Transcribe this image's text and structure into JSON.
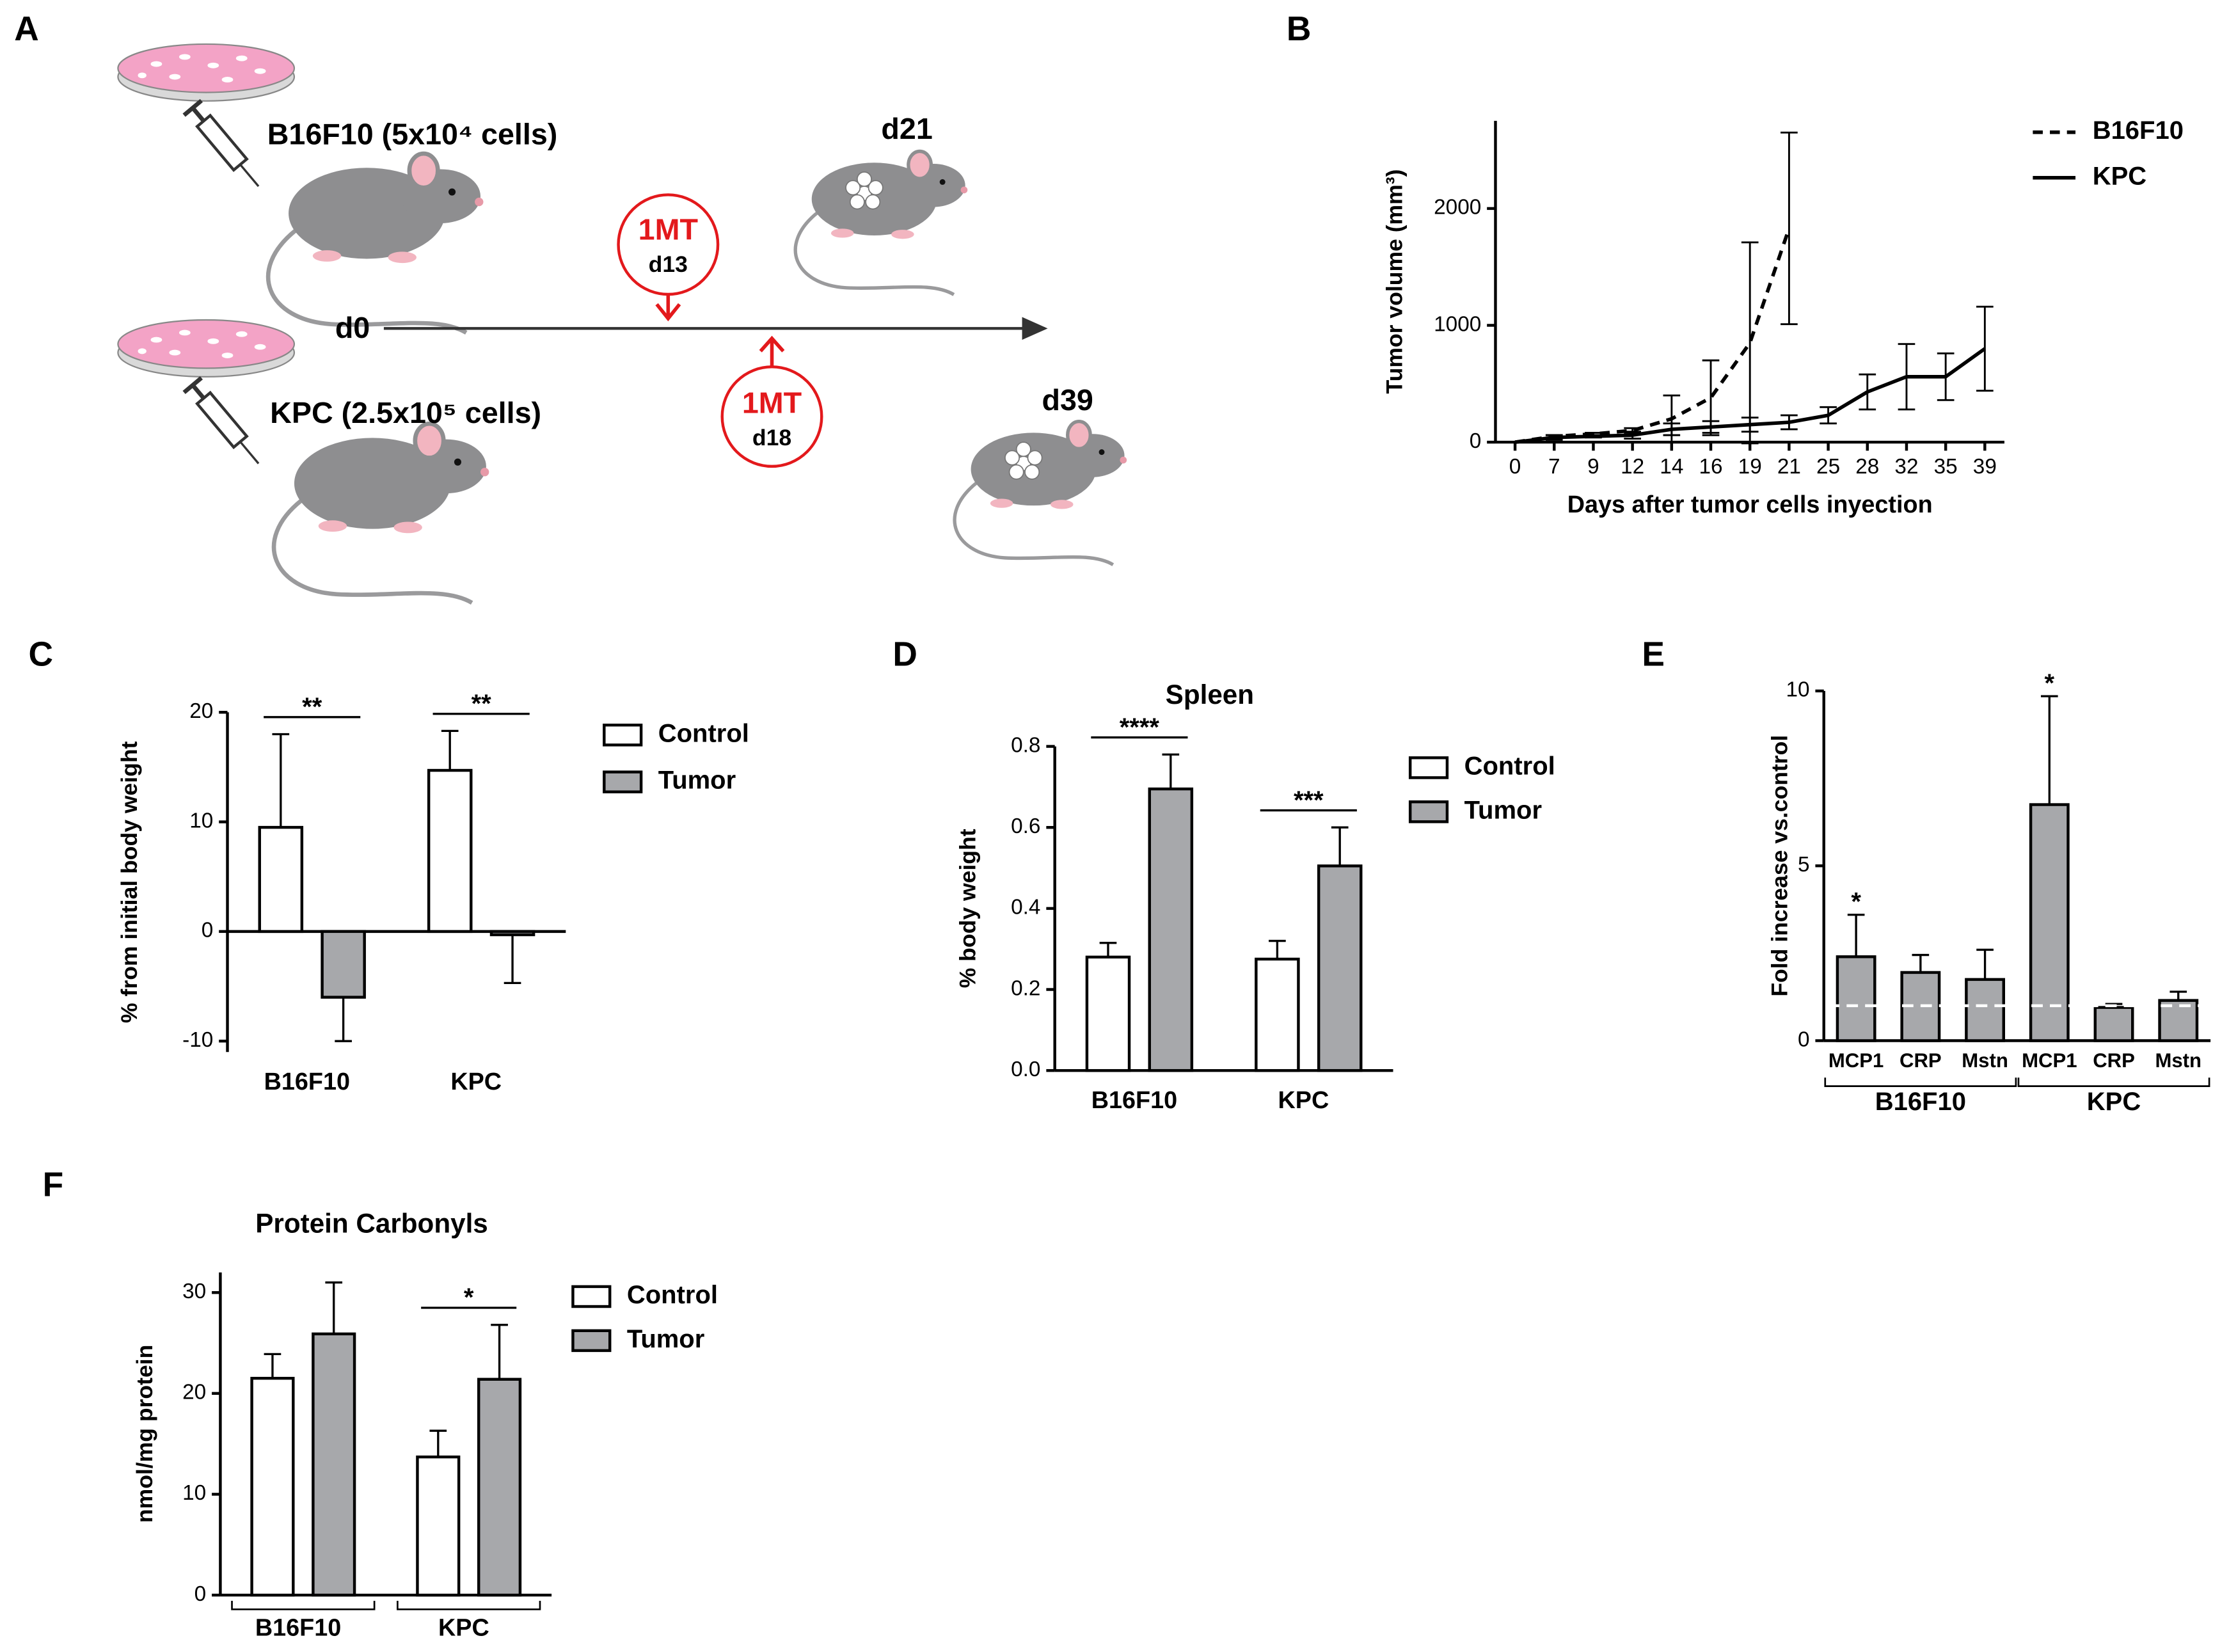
{
  "panel_labels": [
    "A",
    "B",
    "C",
    "D",
    "E",
    "F"
  ],
  "diagram": {
    "cell_lines": [
      "B16F10 (5x10⁴ cells)",
      "KPC (2.5x10⁵ cells)"
    ],
    "start": "d0",
    "endpoints": [
      "d21",
      "d39"
    ],
    "treatments": [
      {
        "name": "1MT",
        "day": "d13"
      },
      {
        "name": "1MT",
        "day": "d18"
      }
    ]
  },
  "chart_data": [
    {
      "type": "line",
      "ylabel": "Tumor volume (mm³)",
      "xlabel": "Days after tumor cells inyection",
      "categories": [
        0,
        7,
        9,
        12,
        14,
        16,
        19,
        21,
        25,
        28,
        32,
        35,
        39
      ],
      "ylim": [
        0,
        2750
      ],
      "yticks": [
        0,
        1000,
        2000
      ],
      "series": [
        {
          "name": "B16F10",
          "color": "#000000",
          "line_style": "dashed",
          "values": [
            0,
            50,
            70,
            100,
            200,
            380,
            850,
            1830,
            null,
            null,
            null,
            null,
            null
          ],
          "errors": [
            0,
            10,
            10,
            20,
            200,
            320,
            860,
            820,
            null,
            null,
            null,
            null,
            null
          ]
        },
        {
          "name": "KPC",
          "color": "#000000",
          "line_style": "solid",
          "values": [
            0,
            40,
            50,
            60,
            110,
            130,
            150,
            170,
            230,
            430,
            560,
            560,
            800
          ],
          "errors": [
            0,
            20,
            10,
            30,
            50,
            50,
            60,
            60,
            70,
            150,
            280,
            200,
            360
          ]
        }
      ]
    },
    {
      "type": "bar",
      "ylabel": "% from initial body weight",
      "categories": [
        "B16F10",
        "KPC"
      ],
      "ylim": [
        -11,
        20
      ],
      "yticks": [
        -10,
        0,
        10,
        20
      ],
      "series": [
        {
          "name": "Control",
          "color": "#ffffff",
          "values": [
            9.5,
            14.7
          ],
          "errors": [
            8.5,
            3.6
          ]
        },
        {
          "name": "Tumor",
          "color": "#a7a8ab",
          "values": [
            -6,
            -0.3
          ],
          "errors": [
            4,
            4.4
          ]
        }
      ],
      "significance": [
        "**",
        "**"
      ]
    },
    {
      "type": "bar",
      "title": "Spleen",
      "ylabel": "% body weight",
      "categories": [
        "B16F10",
        "KPC"
      ],
      "ylim": [
        0,
        0.8
      ],
      "yticks": [
        {
          "value": 0,
          "label": "0.0"
        },
        0.2,
        0.4,
        0.6,
        0.8
      ],
      "series": [
        {
          "name": "Control",
          "color": "#ffffff",
          "values": [
            0.28,
            0.275
          ],
          "errors": [
            0.035,
            0.045
          ]
        },
        {
          "name": "Tumor",
          "color": "#a7a8ab",
          "values": [
            0.695,
            0.505
          ],
          "errors": [
            0.085,
            0.095
          ]
        }
      ],
      "significance": [
        "****",
        "***"
      ]
    },
    {
      "type": "bar",
      "ylabel": "Fold increase vs.control",
      "groups": [
        {
          "name": "B16F10",
          "categories": [
            "MCP1",
            "CRP",
            "Mstn"
          ]
        },
        {
          "name": "KPC",
          "categories": [
            "MCP1",
            "CRP",
            "Mstn"
          ]
        }
      ],
      "ylim": [
        0,
        10
      ],
      "yticks": [
        0,
        5,
        10
      ],
      "reference_line": 1,
      "series": [
        {
          "color": "#a7a8ab",
          "values": [
            2.4,
            1.95,
            1.75,
            6.75,
            0.95,
            1.15
          ],
          "errors": [
            1.2,
            0.5,
            0.85,
            3.1,
            0.1,
            0.25
          ]
        }
      ],
      "significance": [
        "*",
        null,
        null,
        "*",
        null,
        null
      ]
    },
    {
      "type": "bar",
      "title": "Protein Carbonyls",
      "ylabel": "nmol/mg protein",
      "categories": [
        "B16F10",
        "KPC"
      ],
      "category_brackets": true,
      "ylim": [
        0,
        32
      ],
      "yticks": [
        0,
        10,
        20,
        30
      ],
      "series": [
        {
          "name": "Control",
          "color": "#ffffff",
          "values": [
            21.5,
            13.7
          ],
          "errors": [
            2.4,
            2.6
          ]
        },
        {
          "name": "Tumor",
          "color": "#a7a8ab",
          "values": [
            25.9,
            21.4
          ],
          "errors": [
            5.1,
            5.4
          ]
        }
      ],
      "significance": [
        null,
        "*"
      ]
    }
  ]
}
